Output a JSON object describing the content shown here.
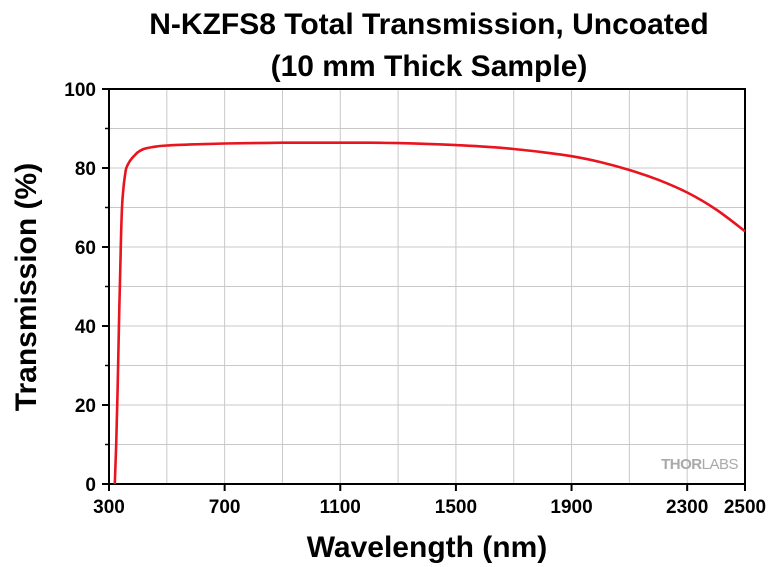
{
  "chart_data": {
    "type": "line",
    "title_line1": "N-KZFS8 Total Transmission, Uncoated",
    "title_line2": "(10 mm Thick Sample)",
    "xlabel": "Wavelength (nm)",
    "ylabel": "Transmission (%)",
    "xlim": [
      300,
      2500
    ],
    "ylim": [
      0,
      100
    ],
    "x_ticks": [
      300,
      700,
      1100,
      1500,
      1900,
      2300,
      2500
    ],
    "x_grid": [
      300,
      500,
      700,
      900,
      1100,
      1300,
      1500,
      1700,
      1900,
      2100,
      2300,
      2500
    ],
    "y_ticks": [
      0,
      20,
      40,
      60,
      80,
      100
    ],
    "y_grid": [
      0,
      10,
      20,
      30,
      40,
      50,
      60,
      70,
      80,
      90,
      100
    ],
    "grid": true,
    "series": [
      {
        "color": "#e8141e",
        "x": [
          320,
          325,
          330,
          335,
          340,
          345,
          350,
          355,
          360,
          370,
          380,
          390,
          400,
          420,
          450,
          500,
          600,
          700,
          800,
          900,
          1000,
          1100,
          1200,
          1300,
          1400,
          1500,
          1600,
          1700,
          1800,
          1900,
          2000,
          2100,
          2200,
          2300,
          2400,
          2500
        ],
        "y": [
          0,
          10,
          25,
          42,
          58,
          70,
          75,
          78,
          80,
          81.5,
          82.5,
          83.3,
          84,
          84.8,
          85.3,
          85.7,
          86,
          86.2,
          86.3,
          86.4,
          86.4,
          86.4,
          86.4,
          86.3,
          86.1,
          85.8,
          85.4,
          84.8,
          84,
          83,
          81.5,
          79.5,
          77,
          73.8,
          69.5,
          64
        ]
      }
    ],
    "watermark_a": "THOR",
    "watermark_b": "LABS"
  }
}
